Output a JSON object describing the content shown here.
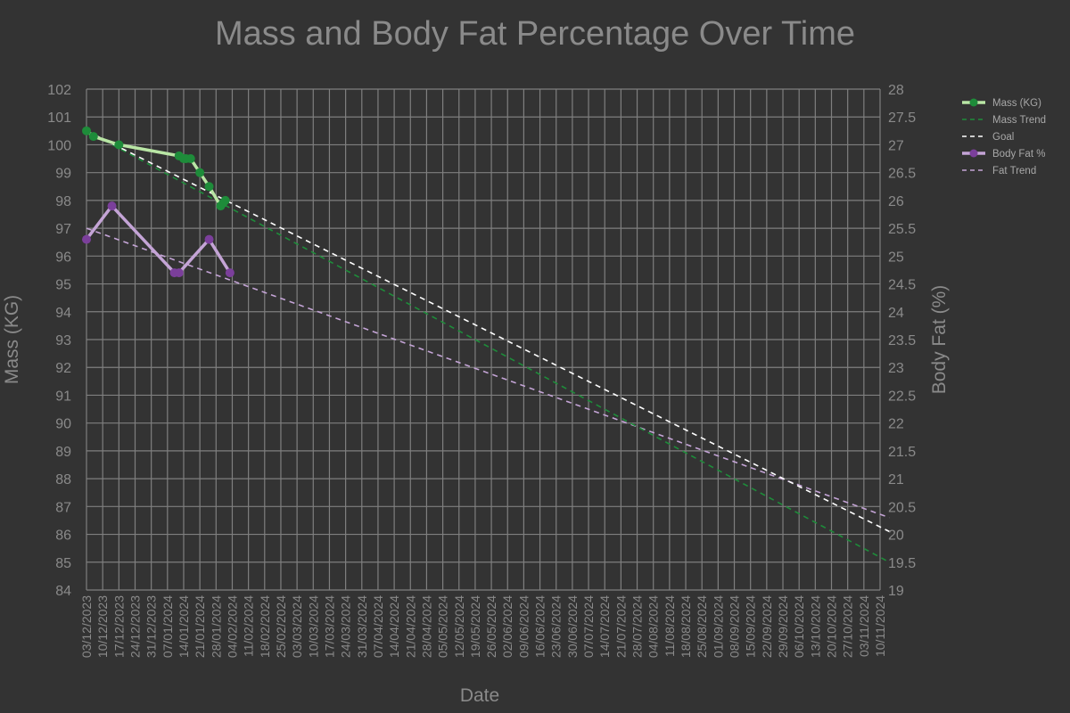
{
  "chart_data": {
    "type": "line",
    "title": "Mass and Body Fat Percentage Over Time",
    "xlabel": "Date",
    "ylabel": "Mass (KG)",
    "y2label": "Body Fat (%)",
    "xlim": [
      "03/12/2023",
      "10/11/2024"
    ],
    "ylim": [
      84,
      102
    ],
    "y2lim": [
      19,
      28
    ],
    "grid": true,
    "legend_position": "top-right",
    "x_ticks": [
      "03/12/2023",
      "10/12/2023",
      "17/12/2023",
      "24/12/2023",
      "31/12/2023",
      "07/01/2024",
      "14/01/2024",
      "21/01/2024",
      "28/01/2024",
      "04/02/2024",
      "11/02/2024",
      "18/02/2024",
      "25/02/2024",
      "03/03/2024",
      "10/03/2024",
      "17/03/2024",
      "24/03/2024",
      "31/03/2024",
      "07/04/2024",
      "14/04/2024",
      "21/04/2024",
      "28/04/2024",
      "05/05/2024",
      "12/05/2024",
      "19/05/2024",
      "26/05/2024",
      "02/06/2024",
      "09/06/2024",
      "16/06/2024",
      "23/06/2024",
      "30/06/2024",
      "07/07/2024",
      "14/07/2024",
      "21/07/2024",
      "28/07/2024",
      "04/08/2024",
      "11/08/2024",
      "18/08/2024",
      "25/08/2024",
      "01/09/2024",
      "08/09/2024",
      "15/09/2024",
      "22/09/2024",
      "29/09/2024",
      "06/10/2024",
      "13/10/2024",
      "20/10/2024",
      "27/10/2024",
      "03/11/2024",
      "10/11/2024"
    ],
    "y_ticks": [
      "84",
      "85",
      "86",
      "87",
      "88",
      "89",
      "90",
      "91",
      "92",
      "93",
      "94",
      "95",
      "96",
      "97",
      "98",
      "99",
      "100",
      "101",
      "102"
    ],
    "y2_ticks": [
      "19",
      "19.5",
      "20",
      "20.5",
      "21",
      "21.5",
      "22",
      "22.5",
      "23",
      "23.5",
      "24",
      "24.5",
      "25",
      "25.5",
      "26",
      "26.5",
      "27",
      "27.5",
      "28"
    ],
    "series": [
      {
        "name": "Mass (KG)",
        "axis": "left",
        "style": "line-markers",
        "color": "#1e8c3a",
        "line_color": "#b9e6a5",
        "x": [
          "03/12/2023",
          "06/12/2023",
          "17/12/2023",
          "12/01/2024",
          "14/01/2024",
          "15/01/2024",
          "17/01/2024",
          "21/01/2024",
          "25/01/2024",
          "30/01/2024",
          "31/01/2024",
          "01/02/2024"
        ],
        "y": [
          100.5,
          100.3,
          100.0,
          99.6,
          99.5,
          99.5,
          99.5,
          99.0,
          98.5,
          97.8,
          97.9,
          98.0
        ]
      },
      {
        "name": "Mass Trend",
        "axis": "left",
        "style": "dashed",
        "color": "#1e8c3a",
        "x": [
          "03/12/2023",
          "14/11/2024"
        ],
        "y": [
          100.5,
          85.0
        ]
      },
      {
        "name": "Goal",
        "axis": "left",
        "style": "dashed",
        "color": "#ffffff",
        "x": [
          "03/12/2023",
          "14/11/2024"
        ],
        "y": [
          100.5,
          86.1
        ]
      },
      {
        "name": "Body Fat %",
        "axis": "right",
        "style": "line-markers",
        "color": "#7b3f9b",
        "line_color": "#c4a4d6",
        "x": [
          "03/12/2023",
          "14/12/2023",
          "10/01/2024",
          "12/01/2024",
          "25/01/2024",
          "03/02/2024"
        ],
        "y": [
          25.3,
          25.9,
          24.7,
          24.7,
          25.3,
          24.7
        ]
      },
      {
        "name": "Fat Trend",
        "axis": "right",
        "style": "dashed",
        "color": "#c4a4d6",
        "x": [
          "03/12/2023",
          "14/11/2024"
        ],
        "y": [
          25.5,
          20.3
        ]
      }
    ]
  }
}
